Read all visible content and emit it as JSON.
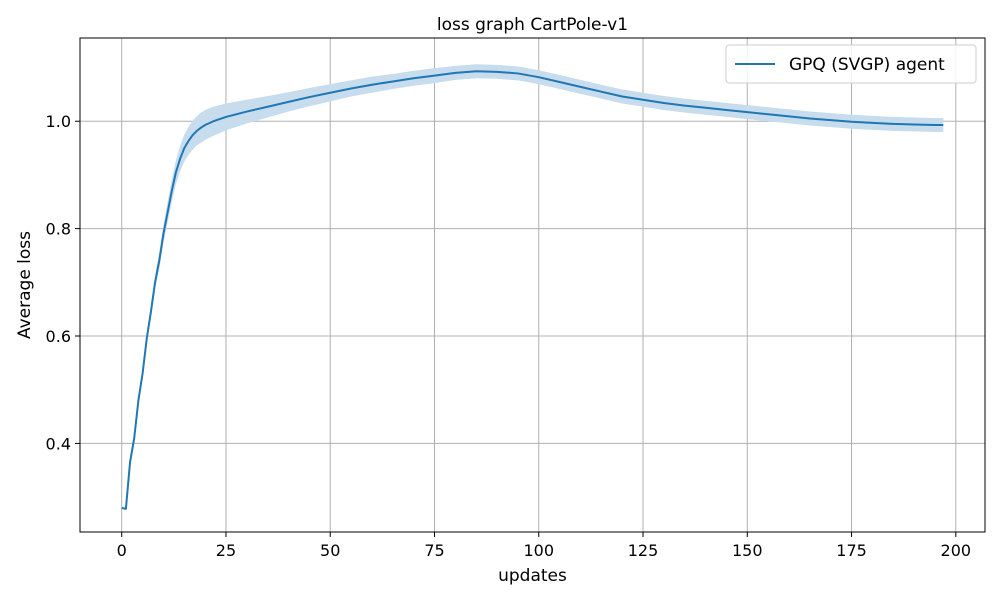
{
  "chart_data": {
    "type": "line",
    "title": "loss graph CartPole-v1",
    "xlabel": "updates",
    "ylabel": "Average loss",
    "xlim": [
      -10,
      207
    ],
    "ylim": [
      0.235,
      1.155
    ],
    "xticks": [
      0,
      25,
      50,
      75,
      100,
      125,
      150,
      175,
      200
    ],
    "yticks": [
      0.4,
      0.6,
      0.8,
      1.0
    ],
    "ytick_labels": [
      "0.4",
      "0.6",
      "0.8",
      "1.0"
    ],
    "grid": true,
    "legend_position": "top-right",
    "series": [
      {
        "name": "GPQ (SVGP) agent",
        "color": "#1f77b4",
        "band_color": "#c7dcec",
        "x": [
          0,
          1,
          2,
          3,
          4,
          5,
          6,
          7,
          8,
          9,
          10,
          11,
          12,
          13,
          14,
          15,
          16,
          17,
          18,
          19,
          20,
          22,
          25,
          30,
          35,
          40,
          45,
          50,
          55,
          60,
          65,
          70,
          75,
          80,
          85,
          90,
          95,
          100,
          105,
          110,
          115,
          120,
          125,
          130,
          135,
          140,
          145,
          150,
          155,
          160,
          165,
          170,
          175,
          180,
          185,
          190,
          195,
          197
        ],
        "y": [
          0.28,
          0.278,
          0.365,
          0.41,
          0.48,
          0.53,
          0.595,
          0.645,
          0.7,
          0.74,
          0.79,
          0.83,
          0.87,
          0.905,
          0.93,
          0.95,
          0.963,
          0.974,
          0.982,
          0.988,
          0.993,
          1.0,
          1.008,
          1.018,
          1.027,
          1.036,
          1.045,
          1.053,
          1.061,
          1.068,
          1.074,
          1.08,
          1.085,
          1.09,
          1.093,
          1.092,
          1.089,
          1.082,
          1.073,
          1.064,
          1.055,
          1.046,
          1.04,
          1.034,
          1.029,
          1.025,
          1.021,
          1.017,
          1.013,
          1.009,
          1.005,
          1.002,
          0.999,
          0.997,
          0.995,
          0.994,
          0.993,
          0.993
        ],
        "band": [
          0.0,
          0.0,
          0.0,
          0.003,
          0.005,
          0.007,
          0.009,
          0.011,
          0.013,
          0.015,
          0.017,
          0.019,
          0.021,
          0.022,
          0.024,
          0.025,
          0.026,
          0.027,
          0.027,
          0.028,
          0.028,
          0.027,
          0.025,
          0.022,
          0.02,
          0.018,
          0.017,
          0.016,
          0.015,
          0.015,
          0.014,
          0.014,
          0.014,
          0.013,
          0.013,
          0.013,
          0.013,
          0.013,
          0.013,
          0.013,
          0.013,
          0.013,
          0.013,
          0.013,
          0.013,
          0.013,
          0.013,
          0.013,
          0.013,
          0.013,
          0.013,
          0.013,
          0.013,
          0.013,
          0.013,
          0.013,
          0.013,
          0.013
        ]
      }
    ]
  }
}
